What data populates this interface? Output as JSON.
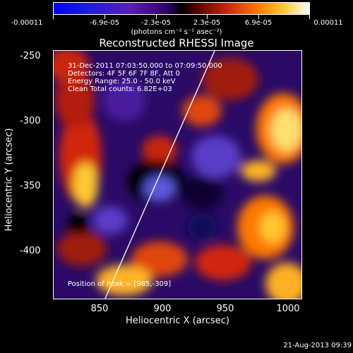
{
  "colorbar": {
    "labels": [
      "-0.00011",
      "-6.9e-05",
      "-2.3e-05",
      "2.3e-05",
      "6.9e-05",
      "0.00011"
    ],
    "units": "(photons cm⁻² s⁻¹ asec⁻²)"
  },
  "title": "Reconstructed RHESSI Image",
  "info": {
    "time_range": "31-Dec-2011 07:03:50.000 to 07:09:50.000",
    "detectors": "Detectors: 4F 5F 6F 7F 8F, Att 0",
    "energy_range": "Energy Range: 25.0 - 50.0 keV",
    "clean_counts": "Clean     Total counts: 6.82E+03",
    "peak": "Position of Peak = [985,-309]"
  },
  "axes": {
    "xlabel": "Heliocentric X (arcsec)",
    "ylabel": "Heliocentric Y (arcsec)",
    "xticks": [
      "850",
      "900",
      "950",
      "1000"
    ],
    "yticks": [
      "-250",
      "-300",
      "-350",
      "-400"
    ]
  },
  "timestamp": "21-Aug-2013 09:39"
}
